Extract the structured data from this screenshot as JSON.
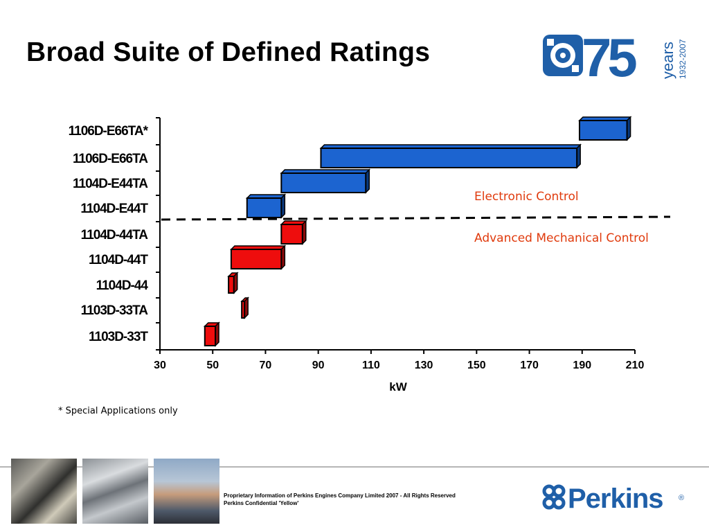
{
  "slide": {
    "title": "Broad Suite of Defined Ratings",
    "footnote": "* Special Applications only",
    "legal_line1": "Proprietary Information of Perkins Engines Company Limited 2007 - All Rights Reserved",
    "legal_line2": "Perkins Confidential 'Yellow'"
  },
  "logo75": {
    "number": "75",
    "word": "years",
    "years_range": "1932-2007",
    "color": "#1f5fa8"
  },
  "perkins_logo": {
    "text": "Perkins",
    "mark": "®",
    "color": "#1f5fa8"
  },
  "images": [
    {
      "name": "engine-photo"
    },
    {
      "name": "pistons-photo"
    },
    {
      "name": "engineer-photo"
    }
  ],
  "chart_data": {
    "type": "bar",
    "orientation": "horizontal-range",
    "xlabel": "kW",
    "ylabel": "",
    "xlim": [
      30,
      210
    ],
    "xticks": [
      30,
      50,
      70,
      90,
      110,
      130,
      150,
      170,
      190,
      210
    ],
    "categories": [
      "1106D-E66TA*",
      "1106D-E66TA",
      "1104D-E44TA",
      "1104D-E44T",
      "1104D-44TA",
      "1104D-44T",
      "1104D-44",
      "1103D-33TA",
      "1103D-33T"
    ],
    "ranges": [
      [
        189,
        207
      ],
      [
        91,
        188
      ],
      [
        76,
        108
      ],
      [
        63,
        76
      ],
      [
        76,
        84
      ],
      [
        57,
        76
      ],
      [
        56,
        58
      ],
      [
        61,
        62
      ],
      [
        47,
        51
      ]
    ],
    "groups": [
      "electronic",
      "electronic",
      "electronic",
      "electronic",
      "mechanical",
      "mechanical",
      "mechanical",
      "mechanical",
      "mechanical"
    ],
    "group_colors": {
      "electronic": "#1c64d0",
      "mechanical": "#ee0d0d"
    },
    "divider_labels": {
      "upper": "Electronic Control",
      "lower": "Advanced Mechanical Control"
    },
    "divider_label_color": "#e03a0c",
    "grid": false,
    "legend": "none"
  }
}
